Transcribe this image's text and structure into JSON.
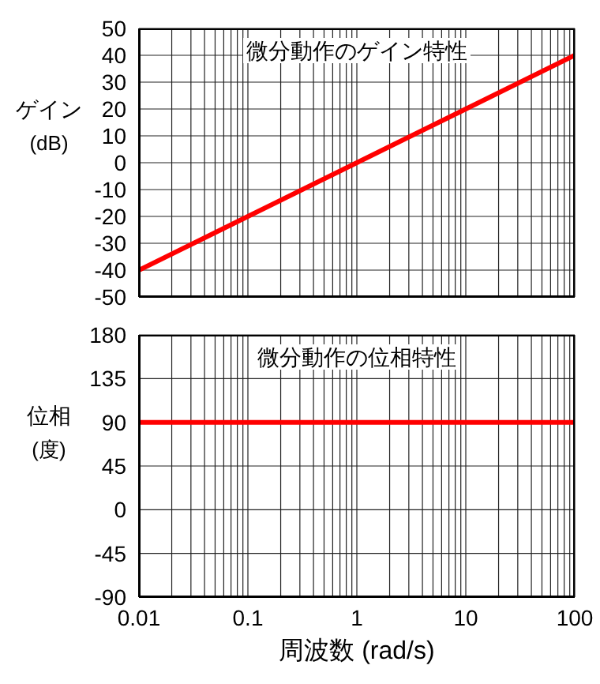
{
  "chart_data": [
    {
      "type": "line",
      "title": "微分動作のゲイン特性",
      "ylabel": "ゲイン\n(dB)",
      "series": [
        {
          "color": "#ff0000",
          "x": [
            0.01,
            0.1,
            1,
            10,
            100
          ],
          "values": [
            -40,
            -20,
            0,
            20,
            40
          ]
        }
      ],
      "xlim": [
        0.01,
        100
      ],
      "xticks": [
        0.01,
        {
          "value": 0.02,
          "label": null
        },
        {
          "value": 0.03,
          "label": null
        },
        {
          "value": 0.04,
          "label": null
        },
        {
          "value": 0.05,
          "label": null
        },
        {
          "value": 0.06,
          "label": null
        },
        {
          "value": 0.07,
          "label": null
        },
        {
          "value": 0.08,
          "label": null
        },
        {
          "value": 0.09,
          "label": null
        },
        0.1,
        {
          "value": 0.2,
          "label": null
        },
        {
          "value": 0.3,
          "label": null
        },
        {
          "value": 0.4,
          "label": null
        },
        {
          "value": 0.5,
          "label": null
        },
        {
          "value": 0.6,
          "label": null
        },
        {
          "value": 0.7,
          "label": null
        },
        {
          "value": 0.8,
          "label": null
        },
        {
          "value": 0.9,
          "label": null
        },
        1,
        {
          "value": 2,
          "label": null
        },
        {
          "value": 3,
          "label": null
        },
        {
          "value": 4,
          "label": null
        },
        {
          "value": 5,
          "label": null
        },
        {
          "value": 6,
          "label": null
        },
        {
          "value": 7,
          "label": null
        },
        {
          "value": 8,
          "label": null
        },
        {
          "value": 9,
          "label": null
        },
        10,
        {
          "value": 20,
          "label": null
        },
        {
          "value": 30,
          "label": null
        },
        {
          "value": 40,
          "label": null
        },
        {
          "value": 50,
          "label": null
        },
        {
          "value": 60,
          "label": null
        },
        {
          "value": 70,
          "label": null
        },
        {
          "value": 80,
          "label": null
        },
        {
          "value": 90,
          "label": null
        },
        100
      ],
      "ylim": [
        -50,
        50
      ],
      "yticks": [
        -50,
        -40,
        -30,
        -20,
        -10,
        0,
        10,
        20,
        30,
        40,
        50
      ],
      "log": "x",
      "grid": true,
      "marker": "none",
      "line_style": "solid",
      "legend": false,
      "tick_labels": "y"
    },
    {
      "type": "line",
      "title": "微分動作の位相特性",
      "ylabel": "位相\n(度)",
      "xlabel": "周波数 (rad/s)",
      "series": [
        {
          "color": "#ff0000",
          "x": [
            0.01,
            100
          ],
          "values": [
            90,
            90
          ]
        }
      ],
      "xlim": [
        0.01,
        100
      ],
      "xticks": [
        0.01,
        {
          "value": 0.02,
          "label": null
        },
        {
          "value": 0.03,
          "label": null
        },
        {
          "value": 0.04,
          "label": null
        },
        {
          "value": 0.05,
          "label": null
        },
        {
          "value": 0.06,
          "label": null
        },
        {
          "value": 0.07,
          "label": null
        },
        {
          "value": 0.08,
          "label": null
        },
        {
          "value": 0.09,
          "label": null
        },
        0.1,
        {
          "value": 0.2,
          "label": null
        },
        {
          "value": 0.3,
          "label": null
        },
        {
          "value": 0.4,
          "label": null
        },
        {
          "value": 0.5,
          "label": null
        },
        {
          "value": 0.6,
          "label": null
        },
        {
          "value": 0.7,
          "label": null
        },
        {
          "value": 0.8,
          "label": null
        },
        {
          "value": 0.9,
          "label": null
        },
        1,
        {
          "value": 2,
          "label": null
        },
        {
          "value": 3,
          "label": null
        },
        {
          "value": 4,
          "label": null
        },
        {
          "value": 5,
          "label": null
        },
        {
          "value": 6,
          "label": null
        },
        {
          "value": 7,
          "label": null
        },
        {
          "value": 8,
          "label": null
        },
        {
          "value": 9,
          "label": null
        },
        10,
        {
          "value": 20,
          "label": null
        },
        {
          "value": 30,
          "label": null
        },
        {
          "value": 40,
          "label": null
        },
        {
          "value": 50,
          "label": null
        },
        {
          "value": 60,
          "label": null
        },
        {
          "value": 70,
          "label": null
        },
        {
          "value": 80,
          "label": null
        },
        {
          "value": 90,
          "label": null
        },
        100
      ],
      "ylim": [
        -90,
        180
      ],
      "yticks": [
        -90,
        -45,
        0,
        45,
        90,
        135,
        180
      ],
      "log": "x",
      "grid": true,
      "marker": "none",
      "line_style": "solid",
      "legend": false
    }
  ]
}
